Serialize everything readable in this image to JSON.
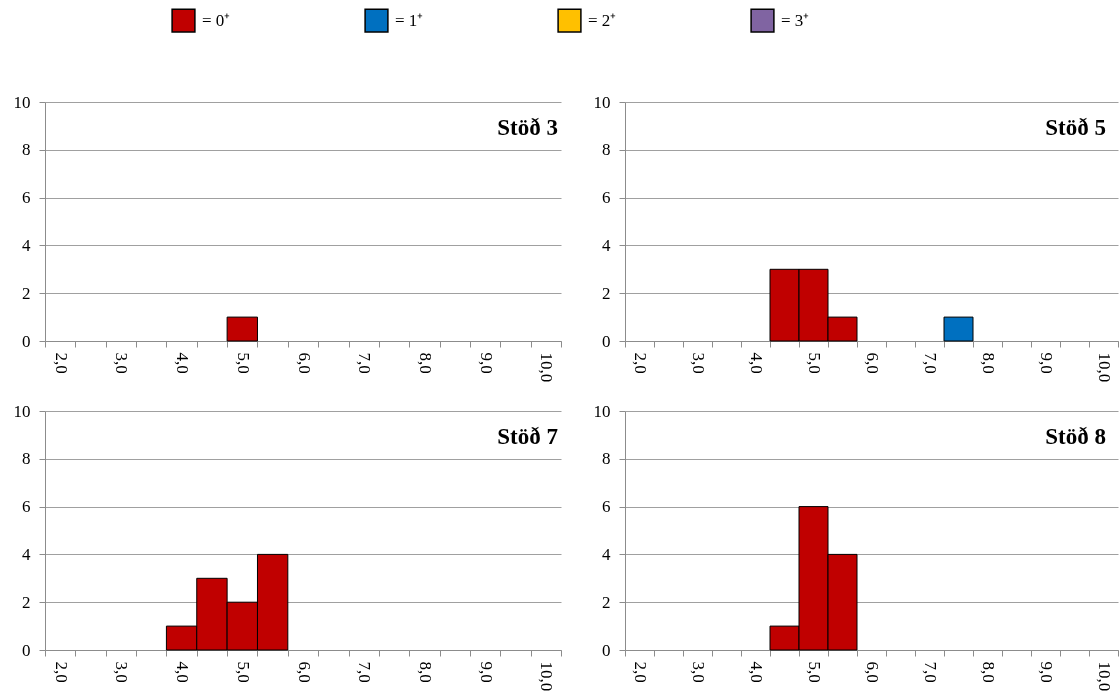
{
  "chart_data": [
    {
      "type": "bar",
      "title": "Stöð 3",
      "categories": [
        "2,0",
        null,
        "3,0",
        null,
        "4,0",
        null,
        "5,0",
        null,
        "6,0",
        null,
        "7,0",
        null,
        "8,0",
        null,
        "9,0",
        null,
        "10,0"
      ],
      "series": [
        {
          "name": "= 0⁺",
          "color": "#c00000",
          "values": [
            null,
            null,
            null,
            null,
            null,
            null,
            1,
            null,
            null,
            null,
            null,
            null,
            null,
            null,
            null,
            null,
            null
          ]
        },
        {
          "name": "= 1⁺",
          "color": "#0070c0",
          "values": [
            null,
            null,
            null,
            null,
            null,
            null,
            null,
            null,
            null,
            null,
            null,
            null,
            null,
            null,
            null,
            null,
            null
          ]
        },
        {
          "name": "= 2⁺",
          "color": "#ffc000",
          "values": [
            null,
            null,
            null,
            null,
            null,
            null,
            null,
            null,
            null,
            null,
            null,
            null,
            null,
            null,
            null,
            null,
            null
          ]
        },
        {
          "name": "= 3⁺",
          "color": "#8064a2",
          "values": [
            null,
            null,
            null,
            null,
            null,
            null,
            null,
            null,
            null,
            null,
            null,
            null,
            null,
            null,
            null,
            null,
            null
          ]
        }
      ],
      "stacked": true,
      "ylim": [
        0,
        10
      ],
      "yticks": [
        0,
        2,
        4,
        6,
        8,
        10
      ],
      "grid": "y",
      "legend": "top"
    },
    {
      "type": "bar",
      "title": "Stöð 5",
      "categories": [
        "2,0",
        null,
        "3,0",
        null,
        "4,0",
        null,
        "5,0",
        null,
        "6,0",
        null,
        "7,0",
        null,
        "8,0",
        null,
        "9,0",
        null,
        "10,0"
      ],
      "series": [
        {
          "color": "#c00000",
          "values": [
            null,
            null,
            null,
            null,
            null,
            3,
            3,
            1,
            null,
            null,
            null,
            null,
            null,
            null,
            null,
            null,
            null
          ]
        },
        {
          "color": "#0070c0",
          "values": [
            null,
            null,
            null,
            null,
            null,
            null,
            null,
            null,
            null,
            null,
            null,
            1,
            null,
            null,
            null,
            null,
            null
          ]
        }
      ],
      "stacked": true,
      "ylim": [
        0,
        10
      ],
      "yticks": [
        0,
        2,
        4,
        6,
        8,
        10
      ],
      "grid": "y"
    },
    {
      "type": "bar",
      "title": "Stöð 7",
      "categories": [
        "2,0",
        null,
        "3,0",
        null,
        "4,0",
        null,
        "5,0",
        null,
        "6,0",
        null,
        "7,0",
        null,
        "8,0",
        null,
        "9,0",
        null,
        "10,0"
      ],
      "series": [
        {
          "color": "#c00000",
          "values": [
            null,
            null,
            null,
            null,
            1,
            3,
            2,
            4,
            null,
            null,
            null,
            null,
            null,
            null,
            null,
            null,
            null
          ]
        }
      ],
      "stacked": true,
      "ylim": [
        0,
        10
      ],
      "yticks": [
        0,
        2,
        4,
        6,
        8,
        10
      ],
      "grid": "y"
    },
    {
      "type": "bar",
      "title": "Stöð 8",
      "categories": [
        "2,0",
        null,
        "3,0",
        null,
        "4,0",
        null,
        "5,0",
        null,
        "6,0",
        null,
        "7,0",
        null,
        "8,0",
        null,
        "9,0",
        null,
        "10,0"
      ],
      "series": [
        {
          "color": "#c00000",
          "values": [
            null,
            null,
            null,
            null,
            null,
            1,
            6,
            4,
            null,
            null,
            null,
            null,
            null,
            null,
            null,
            null,
            null
          ]
        }
      ],
      "stacked": true,
      "ylim": [
        0,
        10
      ],
      "yticks": [
        0,
        2,
        4,
        6,
        8,
        10
      ],
      "grid": "y"
    }
  ]
}
